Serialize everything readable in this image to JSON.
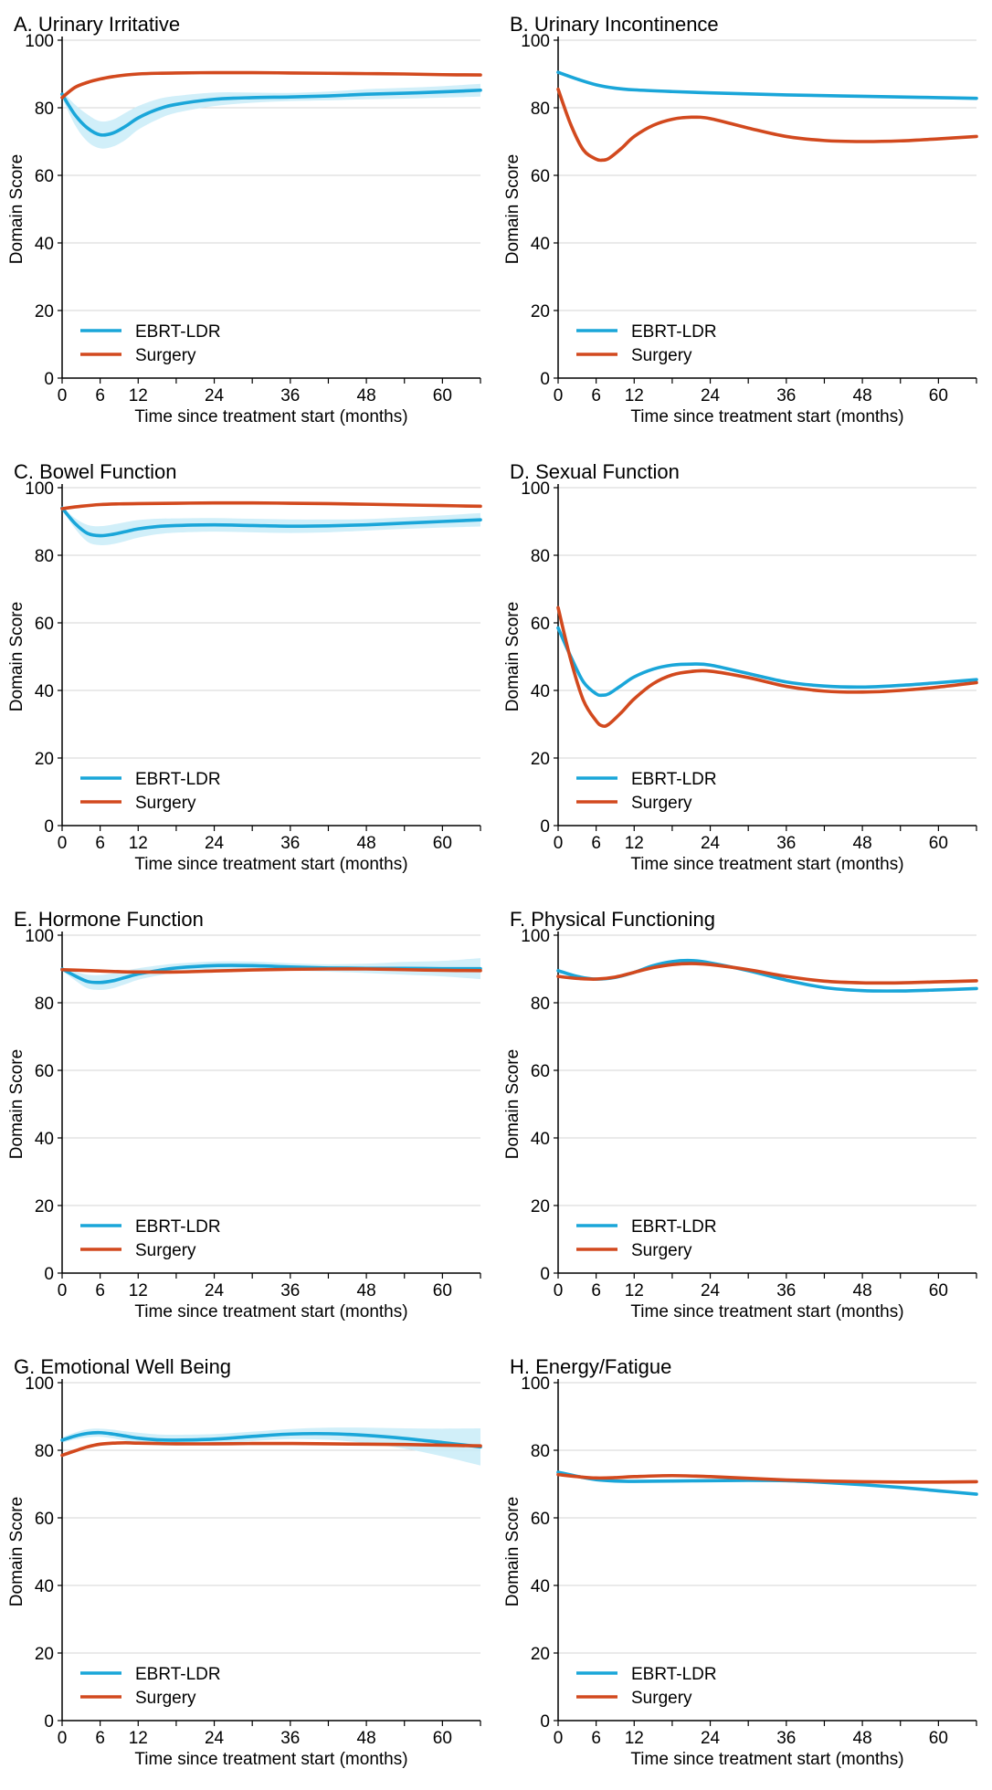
{
  "colors": {
    "ebrt": "#1aa6d9",
    "surgery": "#d2491e",
    "band": "#c9ecf8",
    "grid": "#d4d4d4",
    "axis": "#000000"
  },
  "chart_data": [
    {
      "type": "line",
      "title": "A. Urinary Irritative",
      "xlabel": "Time since treatment start (months)",
      "ylabel": "Domain Score",
      "xlim": [
        0,
        66
      ],
      "ylim": [
        0,
        100
      ],
      "xticks": [
        0,
        6,
        12,
        24,
        36,
        48,
        60
      ],
      "yticks": [
        0,
        20,
        40,
        60,
        80,
        100
      ],
      "grid": "horizontal",
      "legend_position": "bottom-left",
      "series": [
        {
          "name": "EBRT-LDR",
          "color": "#1aa6d9",
          "x": [
            0,
            2,
            4,
            6,
            8,
            10,
            12,
            15,
            18,
            24,
            30,
            36,
            42,
            48,
            54,
            60,
            66
          ],
          "y": [
            84,
            78,
            74,
            72,
            72.5,
            74.5,
            77,
            79.5,
            81,
            82.5,
            83,
            83.2,
            83.5,
            84,
            84.3,
            84.7,
            85.2
          ],
          "ci_lower": [
            83,
            75,
            70,
            68,
            68.5,
            70.5,
            73.5,
            76.5,
            78.5,
            80.5,
            81.5,
            82,
            82.2,
            82.5,
            82.7,
            83,
            83.3
          ],
          "ci_upper": [
            85,
            81,
            78,
            76,
            76.5,
            78.5,
            80.5,
            82.5,
            83.5,
            84.5,
            84.5,
            84.4,
            84.8,
            85.5,
            85.9,
            86.4,
            87.1
          ]
        },
        {
          "name": "Surgery",
          "color": "#d2491e",
          "x": [
            0,
            2,
            4,
            6,
            8,
            10,
            12,
            15,
            18,
            24,
            30,
            36,
            42,
            48,
            54,
            60,
            66
          ],
          "y": [
            83,
            86,
            87.5,
            88.5,
            89.2,
            89.7,
            90,
            90.2,
            90.3,
            90.4,
            90.4,
            90.3,
            90.2,
            90.1,
            90,
            89.8,
            89.7
          ]
        }
      ]
    },
    {
      "type": "line",
      "title": "B. Urinary Incontinence",
      "xlabel": "Time since treatment start (months)",
      "ylabel": "Domain Score",
      "xlim": [
        0,
        66
      ],
      "ylim": [
        0,
        100
      ],
      "xticks": [
        0,
        6,
        12,
        24,
        36,
        48,
        60
      ],
      "yticks": [
        0,
        20,
        40,
        60,
        80,
        100
      ],
      "grid": "horizontal",
      "legend_position": "bottom-left",
      "series": [
        {
          "name": "EBRT-LDR",
          "color": "#1aa6d9",
          "x": [
            0,
            3,
            6,
            9,
            12,
            18,
            24,
            30,
            36,
            42,
            48,
            54,
            60,
            66
          ],
          "y": [
            90.5,
            88.5,
            86.8,
            85.8,
            85.3,
            84.8,
            84.4,
            84.1,
            83.8,
            83.6,
            83.4,
            83.2,
            83,
            82.8
          ]
        },
        {
          "name": "Surgery",
          "color": "#d2491e",
          "x": [
            0,
            2,
            4,
            6,
            7,
            8,
            10,
            12,
            15,
            18,
            21,
            24,
            30,
            36,
            42,
            48,
            54,
            60,
            66
          ],
          "y": [
            85.5,
            75,
            67.5,
            64.8,
            64.5,
            65,
            68,
            71.5,
            74.8,
            76.6,
            77.2,
            76.8,
            74,
            71.5,
            70.3,
            70,
            70.2,
            70.8,
            71.5
          ]
        }
      ]
    },
    {
      "type": "line",
      "title": "C. Bowel Function",
      "xlabel": "Time since treatment start (months)",
      "ylabel": "Domain Score",
      "xlim": [
        0,
        66
      ],
      "ylim": [
        0,
        100
      ],
      "xticks": [
        0,
        6,
        12,
        24,
        36,
        48,
        60
      ],
      "yticks": [
        0,
        20,
        40,
        60,
        80,
        100
      ],
      "grid": "horizontal",
      "legend_position": "bottom-left",
      "series": [
        {
          "name": "EBRT-LDR",
          "color": "#1aa6d9",
          "x": [
            0,
            2,
            4,
            6,
            8,
            10,
            12,
            15,
            18,
            24,
            30,
            36,
            42,
            48,
            54,
            60,
            66
          ],
          "y": [
            94,
            89.5,
            86.5,
            85.8,
            86.2,
            87,
            87.8,
            88.5,
            88.8,
            89,
            88.8,
            88.6,
            88.7,
            89,
            89.5,
            90,
            90.5
          ],
          "ci_lower": [
            93.5,
            88,
            84,
            83,
            83.3,
            84.2,
            85.2,
            86.2,
            86.7,
            87,
            86.8,
            86.6,
            86.8,
            87.3,
            87.8,
            88.2,
            88.5
          ],
          "ci_upper": [
            94.5,
            91,
            89,
            88.6,
            89.1,
            89.8,
            90.4,
            90.8,
            90.9,
            91,
            90.8,
            90.6,
            90.6,
            90.7,
            91.2,
            91.8,
            92.5
          ]
        },
        {
          "name": "Surgery",
          "color": "#d2491e",
          "x": [
            0,
            3,
            6,
            9,
            12,
            18,
            24,
            30,
            36,
            42,
            48,
            54,
            60,
            66
          ],
          "y": [
            93.8,
            94.5,
            95,
            95.2,
            95.3,
            95.4,
            95.5,
            95.5,
            95.4,
            95.3,
            95.1,
            94.9,
            94.7,
            94.5
          ]
        }
      ]
    },
    {
      "type": "line",
      "title": "D. Sexual Function",
      "xlabel": "Time since treatment start (months)",
      "ylabel": "Domain Score",
      "xlim": [
        0,
        66
      ],
      "ylim": [
        0,
        100
      ],
      "xticks": [
        0,
        6,
        12,
        24,
        36,
        48,
        60
      ],
      "yticks": [
        0,
        20,
        40,
        60,
        80,
        100
      ],
      "grid": "horizontal",
      "legend_position": "bottom-left",
      "series": [
        {
          "name": "EBRT-LDR",
          "color": "#1aa6d9",
          "x": [
            0,
            2,
            4,
            6,
            7,
            8,
            10,
            12,
            15,
            18,
            21,
            24,
            30,
            36,
            42,
            48,
            54,
            60,
            66
          ],
          "y": [
            58.5,
            50,
            42.5,
            39,
            38.6,
            39,
            41.5,
            44,
            46.3,
            47.5,
            47.8,
            47.5,
            45,
            42.5,
            41.3,
            41,
            41.5,
            42.3,
            43.2
          ]
        },
        {
          "name": "Surgery",
          "color": "#d2491e",
          "x": [
            0,
            2,
            4,
            6,
            7,
            8,
            10,
            12,
            15,
            18,
            21,
            24,
            30,
            36,
            42,
            48,
            54,
            60,
            66
          ],
          "y": [
            64.5,
            49,
            37,
            31,
            29.5,
            30,
            33.5,
            37.5,
            42,
            44.6,
            45.6,
            45.7,
            43.8,
            41.2,
            39.8,
            39.5,
            40,
            41,
            42.3
          ]
        }
      ]
    },
    {
      "type": "line",
      "title": "E. Hormone Function",
      "xlabel": "Time since treatment start (months)",
      "ylabel": "Domain Score",
      "xlim": [
        0,
        66
      ],
      "ylim": [
        0,
        100
      ],
      "xticks": [
        0,
        6,
        12,
        24,
        36,
        48,
        60
      ],
      "yticks": [
        0,
        20,
        40,
        60,
        80,
        100
      ],
      "grid": "horizontal",
      "legend_position": "bottom-left",
      "series": [
        {
          "name": "EBRT-LDR",
          "color": "#1aa6d9",
          "x": [
            0,
            2,
            4,
            6,
            8,
            10,
            12,
            15,
            18,
            24,
            30,
            36,
            42,
            48,
            54,
            60,
            66
          ],
          "y": [
            90,
            88,
            86.3,
            86,
            86.5,
            87.5,
            88.5,
            89.5,
            90.3,
            91,
            91,
            90.6,
            90.3,
            90.2,
            90.2,
            90.1,
            90.1
          ],
          "ci_lower": [
            89.5,
            86.7,
            84.3,
            83.8,
            84.3,
            85.5,
            86.8,
            88,
            89,
            89.8,
            89.8,
            89.5,
            89.2,
            88.8,
            88.3,
            87.8,
            87
          ],
          "ci_upper": [
            90.5,
            89.3,
            88.3,
            88.2,
            88.7,
            89.5,
            90.2,
            91,
            91.6,
            92.2,
            92.2,
            91.7,
            91.4,
            91.6,
            92.1,
            92.4,
            93.2
          ]
        },
        {
          "name": "Surgery",
          "color": "#d2491e",
          "x": [
            0,
            3,
            6,
            9,
            12,
            18,
            24,
            30,
            36,
            42,
            48,
            54,
            60,
            66
          ],
          "y": [
            89.8,
            89.6,
            89.4,
            89.2,
            89.1,
            89.1,
            89.4,
            89.7,
            89.9,
            90,
            90,
            89.8,
            89.6,
            89.5
          ]
        }
      ]
    },
    {
      "type": "line",
      "title": "F. Physical Functioning",
      "xlabel": "Time since treatment start (months)",
      "ylabel": "Domain Score",
      "xlim": [
        0,
        66
      ],
      "ylim": [
        0,
        100
      ],
      "xticks": [
        0,
        6,
        12,
        24,
        36,
        48,
        60
      ],
      "yticks": [
        0,
        20,
        40,
        60,
        80,
        100
      ],
      "grid": "horizontal",
      "legend_position": "bottom-left",
      "series": [
        {
          "name": "EBRT-LDR",
          "color": "#1aa6d9",
          "x": [
            0,
            3,
            6,
            9,
            12,
            15,
            18,
            21,
            24,
            30,
            36,
            42,
            48,
            54,
            60,
            66
          ],
          "y": [
            89.5,
            87.8,
            87,
            87.5,
            89,
            91,
            92.2,
            92.5,
            91.8,
            89.5,
            86.7,
            84.5,
            83.6,
            83.5,
            83.8,
            84.2
          ]
        },
        {
          "name": "Surgery",
          "color": "#d2491e",
          "x": [
            0,
            3,
            6,
            9,
            12,
            15,
            18,
            21,
            24,
            30,
            36,
            42,
            48,
            54,
            60,
            66
          ],
          "y": [
            87.8,
            87.2,
            87,
            87.6,
            89,
            90.4,
            91.3,
            91.6,
            91.3,
            89.8,
            87.8,
            86.4,
            85.9,
            85.9,
            86.2,
            86.5
          ]
        }
      ]
    },
    {
      "type": "line",
      "title": "G. Emotional Well Being",
      "xlabel": "Time since treatment start (months)",
      "ylabel": "Domain Score",
      "xlim": [
        0,
        66
      ],
      "ylim": [
        0,
        100
      ],
      "xticks": [
        0,
        6,
        12,
        24,
        36,
        48,
        60
      ],
      "yticks": [
        0,
        20,
        40,
        60,
        80,
        100
      ],
      "grid": "horizontal",
      "legend_position": "bottom-left",
      "series": [
        {
          "name": "EBRT-LDR",
          "color": "#1aa6d9",
          "x": [
            0,
            2,
            4,
            6,
            8,
            10,
            12,
            15,
            18,
            24,
            30,
            36,
            42,
            48,
            54,
            60,
            66
          ],
          "y": [
            83,
            84.2,
            85,
            85.2,
            84.8,
            84.2,
            83.6,
            83.1,
            83,
            83.3,
            84.1,
            84.8,
            84.9,
            84.4,
            83.5,
            82.3,
            81
          ],
          "ci_lower": [
            82.2,
            83.2,
            83.8,
            84,
            83.5,
            82.8,
            82,
            81.5,
            81.4,
            81.8,
            82.7,
            83.3,
            83.1,
            82.1,
            80.5,
            78.2,
            75.5
          ],
          "ci_upper": [
            83.8,
            85.2,
            86.2,
            86.4,
            86.1,
            85.6,
            85.2,
            84.7,
            84.6,
            84.8,
            85.5,
            86.3,
            86.7,
            86.7,
            86.5,
            86.4,
            86.5
          ]
        },
        {
          "name": "Surgery",
          "color": "#d2491e",
          "x": [
            0,
            2,
            4,
            6,
            8,
            10,
            12,
            15,
            18,
            24,
            30,
            36,
            42,
            48,
            54,
            60,
            66
          ],
          "y": [
            78.5,
            79.8,
            81,
            81.8,
            82.1,
            82.2,
            82.1,
            82,
            81.9,
            81.9,
            82,
            82,
            81.9,
            81.8,
            81.7,
            81.5,
            81.3
          ]
        }
      ]
    },
    {
      "type": "line",
      "title": "H. Energy/Fatigue",
      "xlabel": "Time since treatment start (months)",
      "ylabel": "Domain Score",
      "xlim": [
        0,
        66
      ],
      "ylim": [
        0,
        100
      ],
      "xticks": [
        0,
        6,
        12,
        24,
        36,
        48,
        60
      ],
      "yticks": [
        0,
        20,
        40,
        60,
        80,
        100
      ],
      "grid": "horizontal",
      "legend_position": "bottom-left",
      "series": [
        {
          "name": "EBRT-LDR",
          "color": "#1aa6d9",
          "x": [
            0,
            3,
            6,
            9,
            12,
            18,
            24,
            30,
            36,
            42,
            48,
            54,
            60,
            66
          ],
          "y": [
            73.5,
            72.3,
            71.3,
            70.9,
            70.8,
            70.9,
            71,
            71.1,
            71,
            70.5,
            69.8,
            69,
            68,
            67
          ]
        },
        {
          "name": "Surgery",
          "color": "#d2491e",
          "x": [
            0,
            3,
            6,
            9,
            12,
            18,
            24,
            30,
            36,
            42,
            48,
            54,
            60,
            66
          ],
          "y": [
            72.8,
            72.2,
            71.8,
            71.9,
            72.2,
            72.5,
            72.2,
            71.7,
            71.2,
            70.9,
            70.7,
            70.6,
            70.6,
            70.7
          ]
        }
      ]
    }
  ]
}
